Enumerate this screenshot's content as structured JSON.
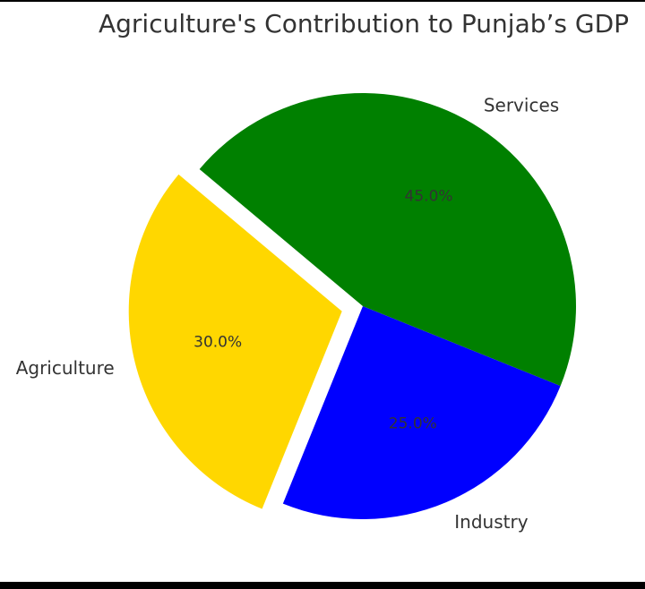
{
  "chart_data": {
    "type": "pie",
    "title": "Agriculture's Contribution to Punjab’s GDP",
    "slices": [
      {
        "label": "Agriculture",
        "value": 30.0,
        "pct_label": "30.0%",
        "color": "#ffd700",
        "exploded": true
      },
      {
        "label": "Industry",
        "value": 25.0,
        "pct_label": "25.0%",
        "color": "#0000ff",
        "exploded": false
      },
      {
        "label": "Services",
        "value": 45.0,
        "pct_label": "45.0%",
        "color": "#008000",
        "exploded": false
      }
    ],
    "legend": "none"
  }
}
